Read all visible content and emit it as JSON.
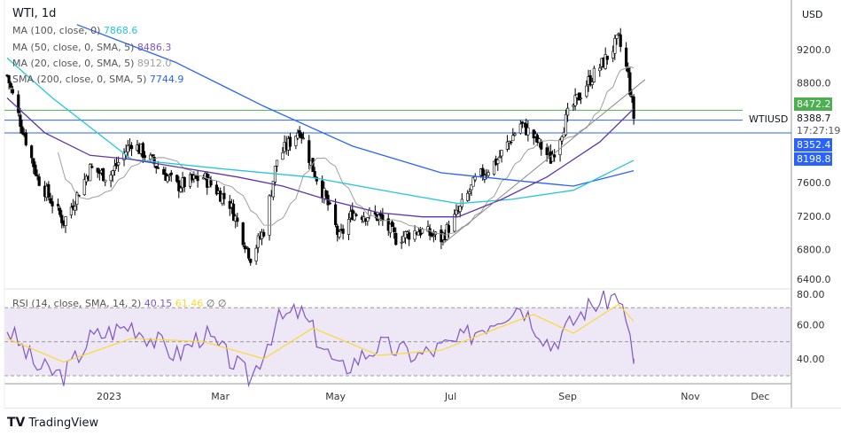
{
  "header": {
    "symbol_title": "WTI, 1d",
    "currency": "USD"
  },
  "legend": [
    {
      "label": "MA (100, close, 0)",
      "value": "7868.6",
      "color": "#26c6da"
    },
    {
      "label": "MA (50, close, 0, SMA, 5)",
      "value": "8486.3",
      "color": "#7e57c2"
    },
    {
      "label": "MA (20, close, 0, SMA, 5)",
      "value": "8912.0",
      "color": "#9e9e9e"
    },
    {
      "label": "SMA (200, close, 0, SMA, 5)",
      "value": "7744.9",
      "color": "#2962ff"
    }
  ],
  "rsi_legend": {
    "label": "RSI (14, close, SMA, 14, 2)",
    "rsi": "40.15",
    "rsi_color": "#7e57c2",
    "sma": "61.46",
    "sma_color": "#fdd835",
    "extra1": "∅",
    "extra2": "∅"
  },
  "price_tags": {
    "green": {
      "value": "8472.2",
      "color": "#4caf50"
    },
    "symbol": "WTIUSD",
    "last": "8388.7",
    "countdown": "17:27:19",
    "blue1": {
      "value": "8352.4",
      "color": "#2962ff"
    },
    "blue2": {
      "value": "8198.8",
      "color": "#2962ff"
    }
  },
  "branding": "TradingView",
  "chart_data": {
    "type": "candlestick",
    "title": "WTI, 1d",
    "price_axis": {
      "ticks": [
        "9200.0",
        "8800.0",
        "7600.0",
        "7200.0",
        "6800.0",
        "6400.0"
      ],
      "range": [
        6350,
        9600
      ]
    },
    "rsi_axis": {
      "ticks": [
        "80.00",
        "60.00",
        "40.00"
      ],
      "bands": [
        30,
        50,
        70
      ],
      "range": [
        22,
        82
      ]
    },
    "time_axis": {
      "ticks": [
        "2023",
        "Mar",
        "May",
        "Jul",
        "Sep",
        "Nov",
        "Dec"
      ]
    },
    "close_path": [
      [
        "2022-11-08",
        8890
      ],
      [
        "2022-11-14",
        8410
      ],
      [
        "2022-11-24",
        7670
      ],
      [
        "2022-12-08",
        7130
      ],
      [
        "2022-12-22",
        7770
      ],
      [
        "2023-01-01",
        7670
      ],
      [
        "2023-01-13",
        8090
      ],
      [
        "2023-01-25",
        7830
      ],
      [
        "2023-02-06",
        7560
      ],
      [
        "2023-02-20",
        7670
      ],
      [
        "2023-03-06",
        7350
      ],
      [
        "2023-03-17",
        6710
      ],
      [
        "2023-03-24",
        7030
      ],
      [
        "2023-03-31",
        7880
      ],
      [
        "2023-04-12",
        8250
      ],
      [
        "2023-04-19",
        7770
      ],
      [
        "2023-04-26",
        7400
      ],
      [
        "2023-05-03",
        6930
      ],
      [
        "2023-05-10",
        7240
      ],
      [
        "2023-05-24",
        7190
      ],
      [
        "2023-06-02",
        6930
      ],
      [
        "2023-06-14",
        7030
      ],
      [
        "2023-06-26",
        6930
      ],
      [
        "2023-07-05",
        7240
      ],
      [
        "2023-07-14",
        7620
      ],
      [
        "2023-07-26",
        7880
      ],
      [
        "2023-08-07",
        8310
      ],
      [
        "2023-08-14",
        8150
      ],
      [
        "2023-08-23",
        7880
      ],
      [
        "2023-09-01",
        8410
      ],
      [
        "2023-09-11",
        8790
      ],
      [
        "2023-09-20",
        9050
      ],
      [
        "2023-09-28",
        9320
      ],
      [
        "2023-10-03",
        8890
      ],
      [
        "2023-10-06",
        8390
      ]
    ],
    "ma200": [
      [
        "2022-12-15",
        9500
      ],
      [
        "2023-02-05",
        9050
      ],
      [
        "2023-03-24",
        8520
      ],
      [
        "2023-05-10",
        8040
      ],
      [
        "2023-06-26",
        7720
      ],
      [
        "2023-08-12",
        7610
      ],
      [
        "2023-09-04",
        7560
      ],
      [
        "2023-10-06",
        7745
      ]
    ],
    "ma100": [
      [
        "2022-11-08",
        9100
      ],
      [
        "2022-12-02",
        8620
      ],
      [
        "2023-01-13",
        7880
      ],
      [
        "2023-03-01",
        7770
      ],
      [
        "2023-04-17",
        7670
      ],
      [
        "2023-06-02",
        7480
      ],
      [
        "2023-07-05",
        7350
      ],
      [
        "2023-08-02",
        7400
      ],
      [
        "2023-09-04",
        7510
      ],
      [
        "2023-10-06",
        7870
      ]
    ],
    "ma50": [
      [
        "2022-11-08",
        8620
      ],
      [
        "2022-11-28",
        8200
      ],
      [
        "2022-12-22",
        7930
      ],
      [
        "2023-01-13",
        7880
      ],
      [
        "2023-02-06",
        7790
      ],
      [
        "2023-03-10",
        7670
      ],
      [
        "2023-04-03",
        7560
      ],
      [
        "2023-04-26",
        7400
      ],
      [
        "2023-05-24",
        7240
      ],
      [
        "2023-06-16",
        7190
      ],
      [
        "2023-07-05",
        7190
      ],
      [
        "2023-07-28",
        7400
      ],
      [
        "2023-08-21",
        7670
      ],
      [
        "2023-09-18",
        8090
      ],
      [
        "2023-10-06",
        8490
      ]
    ],
    "rsi": [
      [
        "2022-11-08",
        58
      ],
      [
        "2022-11-24",
        35
      ],
      [
        "2022-12-08",
        30
      ],
      [
        "2022-12-22",
        52
      ],
      [
        "2023-01-13",
        60
      ],
      [
        "2023-02-06",
        42
      ],
      [
        "2023-02-20",
        55
      ],
      [
        "2023-03-17",
        28
      ],
      [
        "2023-03-31",
        62
      ],
      [
        "2023-04-12",
        68
      ],
      [
        "2023-05-03",
        33
      ],
      [
        "2023-05-24",
        48
      ],
      [
        "2023-06-14",
        42
      ],
      [
        "2023-07-05",
        50
      ],
      [
        "2023-07-26",
        65
      ],
      [
        "2023-08-07",
        72
      ],
      [
        "2023-08-23",
        48
      ],
      [
        "2023-09-11",
        70
      ],
      [
        "2023-09-28",
        78
      ],
      [
        "2023-10-03",
        55
      ],
      [
        "2023-10-06",
        40
      ]
    ],
    "rsi_sma": [
      [
        "2022-11-08",
        52
      ],
      [
        "2022-12-08",
        38
      ],
      [
        "2023-01-13",
        52
      ],
      [
        "2023-02-20",
        50
      ],
      [
        "2023-03-24",
        40
      ],
      [
        "2023-04-19",
        58
      ],
      [
        "2023-05-24",
        42
      ],
      [
        "2023-06-26",
        45
      ],
      [
        "2023-07-26",
        58
      ],
      [
        "2023-08-14",
        66
      ],
      [
        "2023-09-04",
        55
      ],
      [
        "2023-09-28",
        72
      ],
      [
        "2023-10-06",
        62
      ]
    ],
    "trendline": [
      [
        "2023-06-26",
        6850
      ],
      [
        "2023-10-12",
        8840
      ]
    ],
    "hlines": [
      8472.2,
      8352.4,
      8198.8
    ]
  }
}
